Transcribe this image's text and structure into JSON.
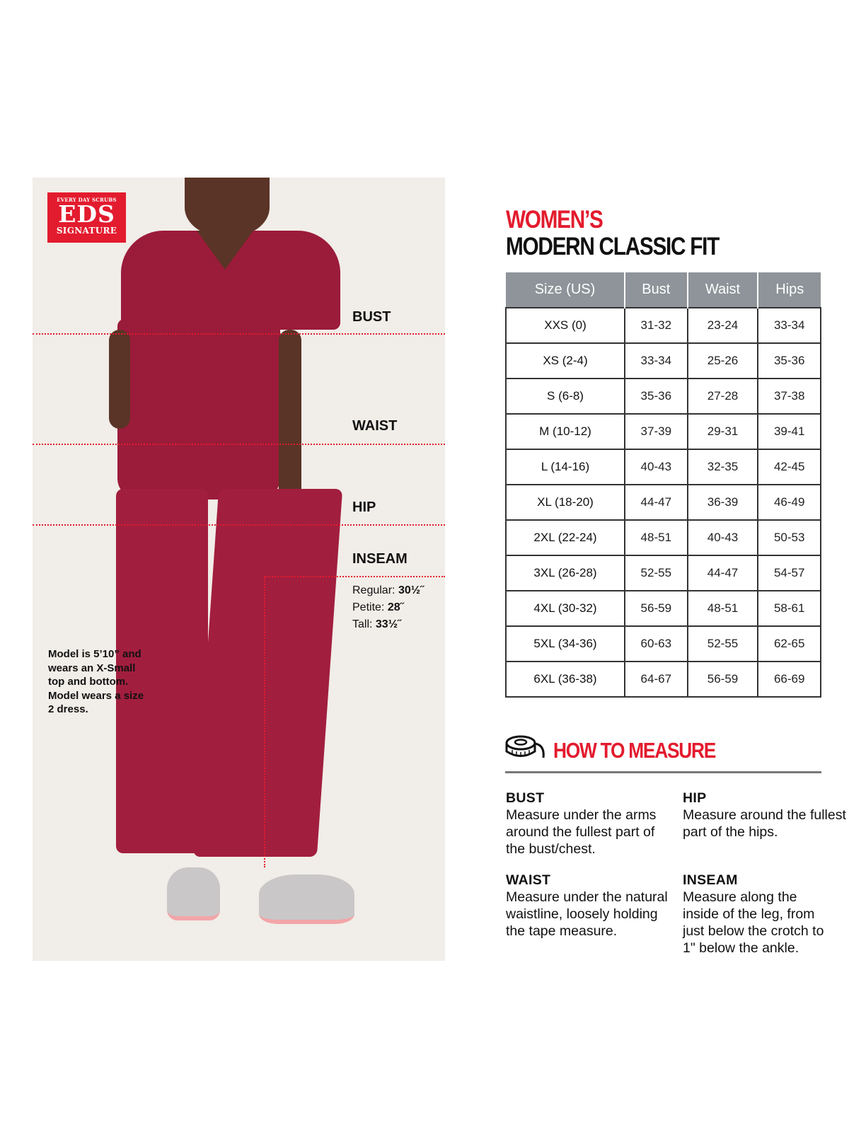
{
  "logo": {
    "line1": "EVERY DAY SCRUBS",
    "line2": "EDS",
    "line3": "SIGNATURE",
    "brand_color": "#e31b2e"
  },
  "photo": {
    "labels": {
      "bust": "BUST",
      "waist": "WAIST",
      "hip": "HIP",
      "inseam": "INSEAM"
    },
    "inseam": [
      {
        "label": "Regular:",
        "value": "30½˝"
      },
      {
        "label": "Petite:",
        "value": "28˝"
      },
      {
        "label": "Tall:",
        "value": "33½˝"
      }
    ],
    "model_note": "Model is 5’10” and wears an X-Small top and bottom. Model wears a size 2 dress.",
    "scrub_color": "#9b1b3a"
  },
  "title": {
    "line1": "WOMEN’S",
    "line2": "MODERN CLASSIC FIT"
  },
  "size_table": {
    "headers": [
      "Size (US)",
      "Bust",
      "Waist",
      "Hips"
    ],
    "rows": [
      [
        "XXS (0)",
        "31-32",
        "23-24",
        "33-34"
      ],
      [
        "XS (2-4)",
        "33-34",
        "25-26",
        "35-36"
      ],
      [
        "S (6-8)",
        "35-36",
        "27-28",
        "37-38"
      ],
      [
        "M (10-12)",
        "37-39",
        "29-31",
        "39-41"
      ],
      [
        "L (14-16)",
        "40-43",
        "32-35",
        "42-45"
      ],
      [
        "XL (18-20)",
        "44-47",
        "36-39",
        "46-49"
      ],
      [
        "2XL (22-24)",
        "48-51",
        "40-43",
        "50-53"
      ],
      [
        "3XL (26-28)",
        "52-55",
        "44-47",
        "54-57"
      ],
      [
        "4XL (30-32)",
        "56-59",
        "48-51",
        "58-61"
      ],
      [
        "5XL (34-36)",
        "60-63",
        "52-55",
        "62-65"
      ],
      [
        "6XL (36-38)",
        "64-67",
        "56-59",
        "66-69"
      ]
    ]
  },
  "how_to_measure": {
    "title": "HOW TO MEASURE",
    "icon": "tape-measure-icon",
    "items": [
      {
        "title": "BUST",
        "text": "Measure under the arms around the fullest part of the bust/chest."
      },
      {
        "title": "HIP",
        "text": "Measure around the fullest part of the hips."
      },
      {
        "title": "WAIST",
        "text": "Measure under the natural waistline, loosely holding the tape measure."
      },
      {
        "title": "INSEAM",
        "text": "Measure along the inside of the leg, from just below the crotch to 1\" below the ankle."
      }
    ]
  }
}
